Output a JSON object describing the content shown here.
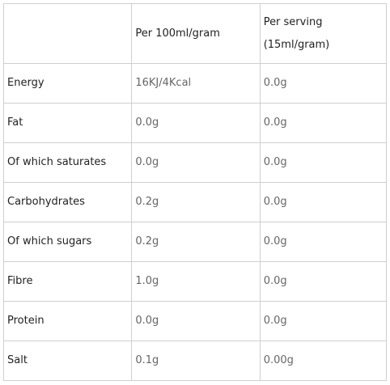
{
  "table": {
    "headers": {
      "name": "",
      "per_100": "Per 100ml/gram",
      "per_serving_line1": "Per serving",
      "per_serving_line2": "(15ml/gram)"
    },
    "rows": [
      {
        "label": "Energy",
        "per_100": "16KJ/4Kcal",
        "per_serving": "0.0g"
      },
      {
        "label": "Fat",
        "per_100": "0.0g",
        "per_serving": "0.0g"
      },
      {
        "label": "Of which saturates",
        "per_100": "0.0g",
        "per_serving": "0.0g"
      },
      {
        "label": "Carbohydrates",
        "per_100": "0.2g",
        "per_serving": "0.0g"
      },
      {
        "label": "Of which sugars",
        "per_100": "0.2g",
        "per_serving": "0.0g"
      },
      {
        "label": "Fibre",
        "per_100": "1.0g",
        "per_serving": "0.0g"
      },
      {
        "label": "Protein",
        "per_100": "0.0g",
        "per_serving": "0.0g"
      },
      {
        "label": "Salt",
        "per_100": "0.1g",
        "per_serving": "0.00g"
      }
    ]
  }
}
